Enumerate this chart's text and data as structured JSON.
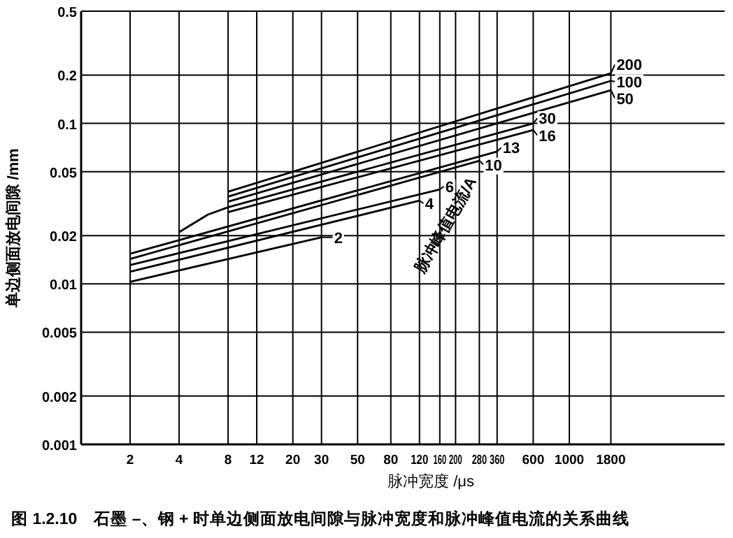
{
  "chart_data": {
    "type": "line",
    "title": "图 1.2.10　石墨 –、钢 + 时单边侧面放电间隙与脉冲宽度和脉冲峰值电流的关系曲线",
    "xlabel": "脉冲宽度 /μs",
    "ylabel": "单边侧面放电间隙 /mm",
    "legend_title": "脉冲峰值电流/A",
    "log": "xy",
    "xlim": [
      1,
      9000
    ],
    "xticks": [
      2,
      4,
      8,
      12,
      20,
      30,
      50,
      80,
      120,
      160,
      200,
      280,
      360,
      600,
      1000,
      1800
    ],
    "ylim": [
      0.001,
      0.5
    ],
    "yticks": [
      0.001,
      0.002,
      0.005,
      0.01,
      0.02,
      0.05,
      0.1,
      0.2,
      0.5
    ],
    "grid": true,
    "legend": "top right",
    "series": [
      {
        "name": "2",
        "color": "#000000",
        "x": [
          2,
          30
        ],
        "values": [
          0.0103,
          0.0195
        ]
      },
      {
        "name": "4",
        "color": "#000000",
        "x": [
          2,
          120
        ],
        "values": [
          0.0119,
          0.033
        ]
      },
      {
        "name": "6",
        "color": "#000000",
        "x": [
          2,
          160
        ],
        "values": [
          0.0131,
          0.0388
        ]
      },
      {
        "name": "10",
        "color": "#000000",
        "x": [
          2,
          280
        ],
        "values": [
          0.0143,
          0.0585
        ]
      },
      {
        "name": "13",
        "color": "#000000",
        "x": [
          2,
          360
        ],
        "values": [
          0.0154,
          0.0668
        ]
      },
      {
        "name": "16",
        "color": "#000000",
        "x": [
          8,
          600
        ],
        "values": [
          0.028,
          0.0908
        ]
      },
      {
        "name": "30",
        "color": "#000000",
        "x": [
          4,
          6,
          8,
          600
        ],
        "values": [
          0.021,
          0.027,
          0.03,
          0.1
        ]
      },
      {
        "name": "50",
        "color": "#000000",
        "x": [
          8,
          1800
        ],
        "values": [
          0.0325,
          0.161
        ]
      },
      {
        "name": "100",
        "color": "#000000",
        "x": [
          8,
          1800
        ],
        "values": [
          0.035,
          0.184
        ]
      },
      {
        "name": "200",
        "color": "#000000",
        "x": [
          8,
          1800
        ],
        "values": [
          0.0375,
          0.205
        ]
      }
    ]
  }
}
